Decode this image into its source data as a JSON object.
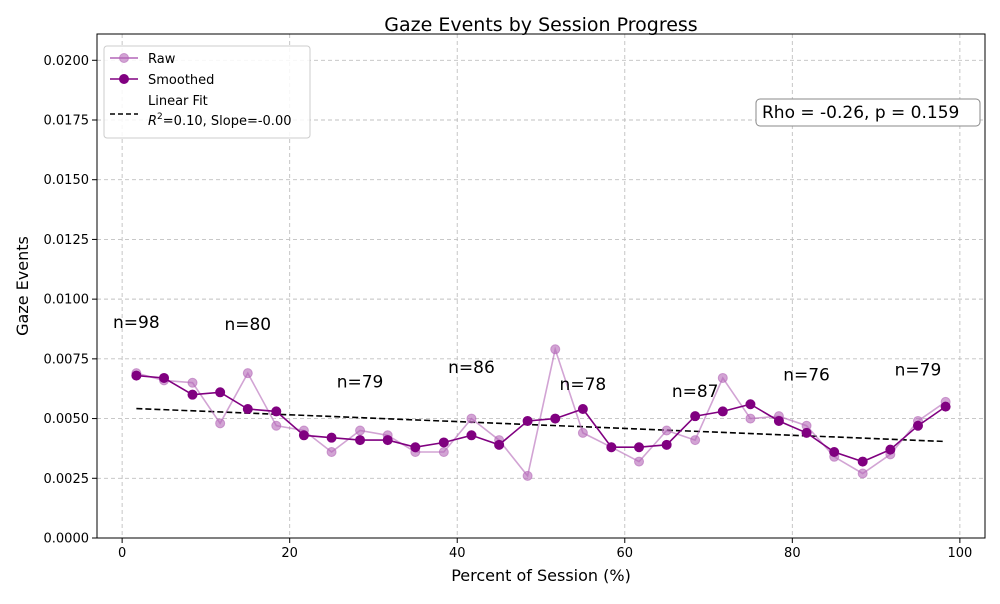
{
  "chart_data": {
    "type": "line",
    "title": "Gaze Events by Session Progress",
    "xlabel": "Percent of Session (%)",
    "ylabel": "Gaze Events",
    "xlim": [
      -3,
      103
    ],
    "ylim": [
      0,
      0.0211
    ],
    "x_ticks": [
      0,
      20,
      40,
      60,
      80,
      100
    ],
    "x_tick_labels": [
      "0",
      "20",
      "40",
      "60",
      "80",
      "100"
    ],
    "y_ticks": [
      0,
      0.0025,
      0.005,
      0.0075,
      0.01,
      0.0125,
      0.015,
      0.0175,
      0.02
    ],
    "y_tick_labels": [
      "0.0000",
      "0.0025",
      "0.0050",
      "0.0075",
      "0.0100",
      "0.0125",
      "0.0150",
      "0.0175",
      "0.0200"
    ],
    "grid": true,
    "legend_position": "top-left",
    "x": [
      1.7,
      5.0,
      8.4,
      11.7,
      15.0,
      18.4,
      21.7,
      25.0,
      28.4,
      31.7,
      35.0,
      38.4,
      41.7,
      45.0,
      48.4,
      51.7,
      55.0,
      58.4,
      61.7,
      65.0,
      68.4,
      71.7,
      75.0,
      78.4,
      81.7,
      85.0,
      88.4,
      91.7,
      95.0,
      98.3
    ],
    "series": [
      {
        "name": "Raw",
        "color": "#b467b8",
        "values": [
          0.0069,
          0.0066,
          0.0065,
          0.0048,
          0.0069,
          0.0047,
          0.0045,
          0.0036,
          0.0045,
          0.0043,
          0.0036,
          0.0036,
          0.005,
          0.0041,
          0.0026,
          0.0079,
          0.0044,
          0.0038,
          0.0032,
          0.0045,
          0.0041,
          0.0067,
          0.005,
          0.0051,
          0.0047,
          0.0034,
          0.0027,
          0.0035,
          0.0049,
          0.0057
        ]
      },
      {
        "name": "Smoothed",
        "color": "#800080",
        "values": [
          0.0068,
          0.0067,
          0.006,
          0.0061,
          0.0054,
          0.0053,
          0.0043,
          0.0042,
          0.0041,
          0.0041,
          0.0038,
          0.004,
          0.0043,
          0.0039,
          0.0049,
          0.005,
          0.0054,
          0.0038,
          0.0038,
          0.0039,
          0.0051,
          0.0053,
          0.0056,
          0.0049,
          0.0044,
          0.0036,
          0.0032,
          0.0037,
          0.0047,
          0.0055
        ]
      },
      {
        "name": "Linear Fit",
        "name_line2": "=0.10, Slope=-0.00",
        "color": "#000000",
        "x": [
          1.7,
          98.3
        ],
        "values": [
          0.00542,
          0.00404
        ]
      }
    ],
    "annotations": [
      {
        "text": "n=98",
        "x": 1.7,
        "y": 0.0088
      },
      {
        "text": "n=80",
        "x": 15.0,
        "y": 0.0087
      },
      {
        "text": "n=79",
        "x": 28.4,
        "y": 0.0063
      },
      {
        "text": "n=86",
        "x": 41.7,
        "y": 0.0069
      },
      {
        "text": "n=78",
        "x": 55.0,
        "y": 0.0062
      },
      {
        "text": "n=87",
        "x": 68.4,
        "y": 0.0059
      },
      {
        "text": "n=76",
        "x": 81.7,
        "y": 0.0066
      },
      {
        "text": "n=79",
        "x": 95.0,
        "y": 0.0068
      }
    ],
    "stats_box": "Rho = -0.26, p = 0.159"
  }
}
